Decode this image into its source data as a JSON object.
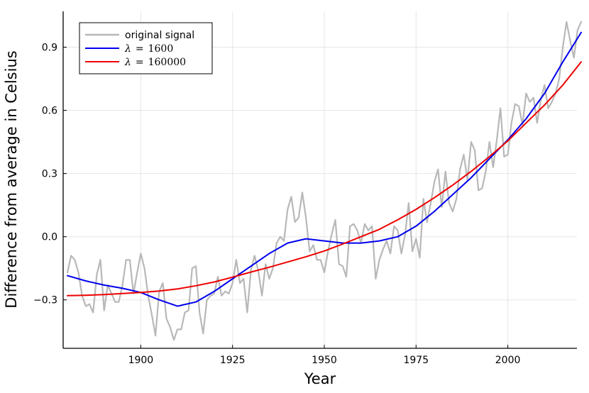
{
  "chart_data": {
    "type": "line",
    "title": "",
    "xlabel": "Year",
    "ylabel": "Difference from average in Celsius",
    "xlim": [
      1880,
      2020
    ],
    "ylim": [
      -0.53,
      1.07
    ],
    "xticks": [
      1900,
      1925,
      1950,
      1975,
      2000
    ],
    "xtick_labels": [
      "1900",
      "1925",
      "1950",
      "1975",
      "2000"
    ],
    "yticks": [
      -0.3,
      0.0,
      0.3,
      0.6,
      0.9
    ],
    "ytick_labels": [
      "−0.3",
      "0.0",
      "0.3",
      "0.6",
      "0.9"
    ],
    "grid": true,
    "legend_position": "top-left",
    "series": [
      {
        "name": "original signal",
        "color": "#b8b8b8",
        "x": [
          1880,
          1881,
          1882,
          1883,
          1884,
          1885,
          1886,
          1887,
          1888,
          1889,
          1890,
          1891,
          1892,
          1893,
          1894,
          1895,
          1896,
          1897,
          1898,
          1899,
          1900,
          1901,
          1902,
          1903,
          1904,
          1905,
          1906,
          1907,
          1908,
          1909,
          1910,
          1911,
          1912,
          1913,
          1914,
          1915,
          1916,
          1917,
          1918,
          1919,
          1920,
          1921,
          1922,
          1923,
          1924,
          1925,
          1926,
          1927,
          1928,
          1929,
          1930,
          1931,
          1932,
          1933,
          1934,
          1935,
          1936,
          1937,
          1938,
          1939,
          1940,
          1941,
          1942,
          1943,
          1944,
          1945,
          1946,
          1947,
          1948,
          1949,
          1950,
          1951,
          1952,
          1953,
          1954,
          1955,
          1956,
          1957,
          1958,
          1959,
          1960,
          1961,
          1962,
          1963,
          1964,
          1965,
          1966,
          1967,
          1968,
          1969,
          1970,
          1971,
          1972,
          1973,
          1974,
          1975,
          1976,
          1977,
          1978,
          1979,
          1980,
          1981,
          1982,
          1983,
          1984,
          1985,
          1986,
          1987,
          1988,
          1989,
          1990,
          1991,
          1992,
          1993,
          1994,
          1995,
          1996,
          1997,
          1998,
          1999,
          2000,
          2001,
          2002,
          2003,
          2004,
          2005,
          2006,
          2007,
          2008,
          2009,
          2010,
          2011,
          2012,
          2013,
          2014,
          2015,
          2016,
          2017,
          2018,
          2019,
          2020
        ],
        "values": [
          -0.17,
          -0.09,
          -0.11,
          -0.17,
          -0.28,
          -0.33,
          -0.32,
          -0.36,
          -0.18,
          -0.11,
          -0.35,
          -0.23,
          -0.27,
          -0.31,
          -0.31,
          -0.23,
          -0.11,
          -0.11,
          -0.27,
          -0.17,
          -0.08,
          -0.15,
          -0.28,
          -0.37,
          -0.47,
          -0.26,
          -0.22,
          -0.39,
          -0.43,
          -0.49,
          -0.44,
          -0.44,
          -0.36,
          -0.35,
          -0.15,
          -0.14,
          -0.36,
          -0.46,
          -0.3,
          -0.28,
          -0.27,
          -0.19,
          -0.28,
          -0.26,
          -0.27,
          -0.22,
          -0.11,
          -0.22,
          -0.2,
          -0.36,
          -0.16,
          -0.09,
          -0.16,
          -0.28,
          -0.13,
          -0.2,
          -0.15,
          -0.03,
          0.0,
          -0.02,
          0.13,
          0.19,
          0.07,
          0.09,
          0.21,
          0.09,
          -0.07,
          -0.04,
          -0.11,
          -0.11,
          -0.17,
          -0.07,
          0.01,
          0.08,
          -0.13,
          -0.14,
          -0.19,
          0.05,
          0.06,
          0.03,
          -0.03,
          0.06,
          0.03,
          0.05,
          -0.2,
          -0.11,
          -0.06,
          -0.02,
          -0.08,
          0.05,
          0.03,
          -0.08,
          0.01,
          0.16,
          -0.07,
          -0.01,
          -0.1,
          0.18,
          0.07,
          0.16,
          0.26,
          0.32,
          0.14,
          0.31,
          0.16,
          0.12,
          0.18,
          0.32,
          0.39,
          0.27,
          0.45,
          0.41,
          0.22,
          0.23,
          0.31,
          0.45,
          0.33,
          0.46,
          0.61,
          0.38,
          0.39,
          0.54,
          0.63,
          0.62,
          0.53,
          0.68,
          0.64,
          0.66,
          0.54,
          0.65,
          0.72,
          0.61,
          0.64,
          0.68,
          0.75,
          0.9,
          1.02,
          0.93,
          0.85,
          0.98,
          1.02
        ]
      },
      {
        "name": "λ = 1600",
        "color": "#0000ee",
        "x": [
          1880,
          1885,
          1890,
          1895,
          1900,
          1905,
          1910,
          1915,
          1920,
          1925,
          1930,
          1935,
          1940,
          1945,
          1950,
          1955,
          1960,
          1965,
          1970,
          1975,
          1980,
          1985,
          1990,
          1995,
          2000,
          2005,
          2010,
          2015,
          2020
        ],
        "values": [
          -0.185,
          -0.21,
          -0.23,
          -0.245,
          -0.265,
          -0.3,
          -0.33,
          -0.31,
          -0.26,
          -0.2,
          -0.14,
          -0.08,
          -0.03,
          -0.01,
          -0.02,
          -0.03,
          -0.03,
          -0.02,
          0.0,
          0.05,
          0.12,
          0.2,
          0.28,
          0.37,
          0.46,
          0.56,
          0.68,
          0.83,
          0.97
        ]
      },
      {
        "name": "λ = 160000",
        "color": "#ee0000",
        "x": [
          1880,
          1885,
          1890,
          1895,
          1900,
          1905,
          1910,
          1915,
          1920,
          1925,
          1930,
          1935,
          1940,
          1945,
          1950,
          1955,
          1960,
          1965,
          1970,
          1975,
          1980,
          1985,
          1990,
          1995,
          2000,
          2005,
          2010,
          2015,
          2020
        ],
        "values": [
          -0.28,
          -0.278,
          -0.275,
          -0.27,
          -0.265,
          -0.258,
          -0.248,
          -0.233,
          -0.215,
          -0.192,
          -0.168,
          -0.145,
          -0.12,
          -0.095,
          -0.068,
          -0.035,
          0.0,
          0.035,
          0.08,
          0.13,
          0.185,
          0.245,
          0.31,
          0.38,
          0.455,
          0.54,
          0.625,
          0.72,
          0.83
        ]
      }
    ],
    "legend_labels": {
      "original": "original signal",
      "l1600_sym": "λ",
      "l1600_eq": "=",
      "l1600_val": "1600",
      "l160000_sym": "λ",
      "l160000_eq": "=",
      "l160000_val": "160000"
    }
  }
}
